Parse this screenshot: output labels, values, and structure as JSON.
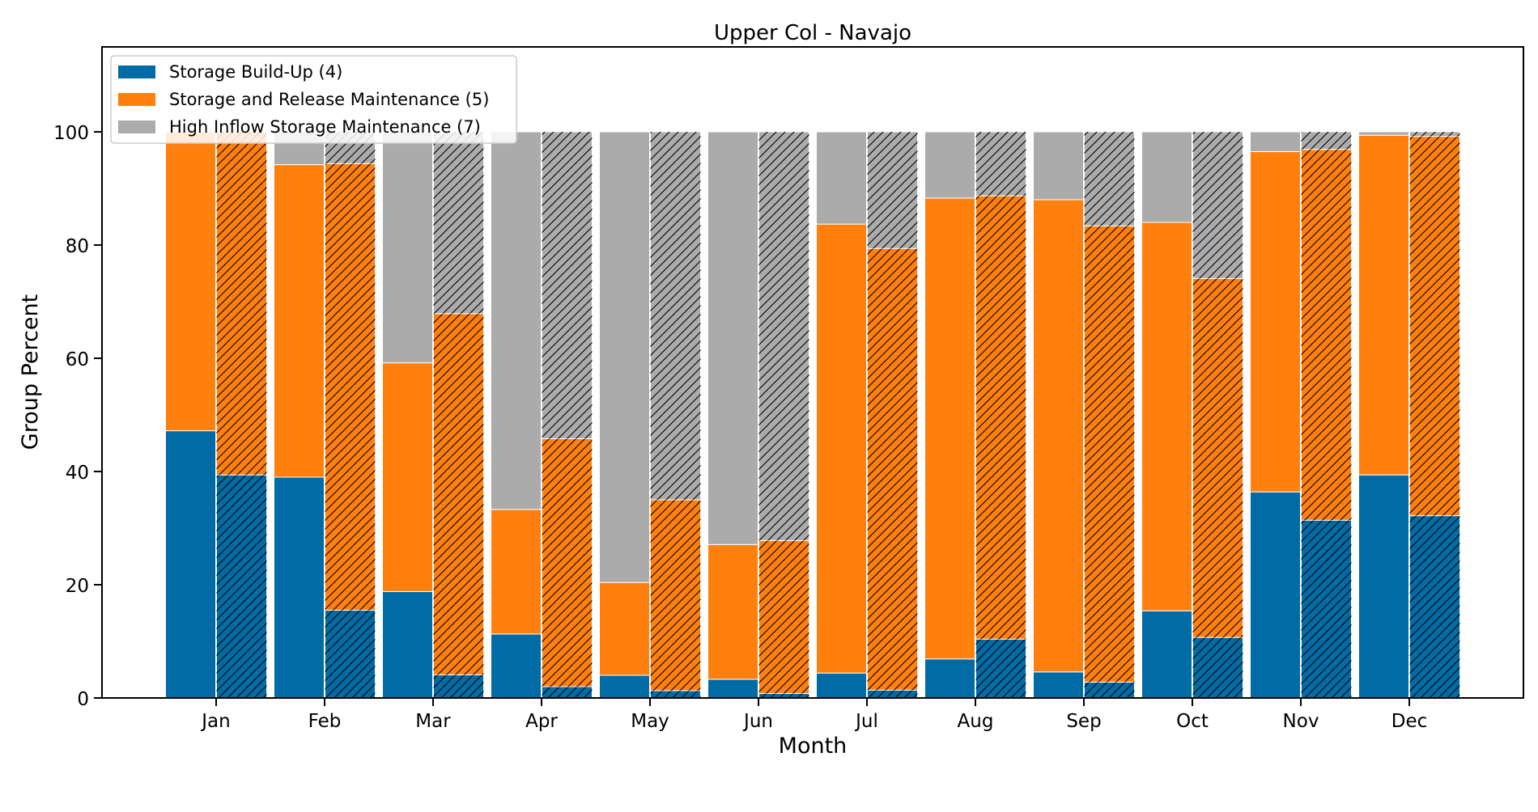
{
  "chart_data": {
    "type": "bar",
    "title": "Upper Col - Navajo",
    "xlabel": "Month",
    "ylabel": "Group Percent",
    "ylim": [
      0,
      115
    ],
    "yticks": [
      0,
      20,
      40,
      60,
      80,
      100
    ],
    "ytick_labels": [
      "0",
      "20",
      "40",
      "60",
      "80",
      "100"
    ],
    "categories": [
      "Jan",
      "Feb",
      "Mar",
      "Apr",
      "May",
      "Jun",
      "Jul",
      "Aug",
      "Sep",
      "Oct",
      "Nov",
      "Dec"
    ],
    "stacked": true,
    "legend_position": "top-left",
    "bar_groups": [
      {
        "name": "plain",
        "hatch": "none"
      },
      {
        "name": "hatched",
        "hatch": "diagonal"
      }
    ],
    "series": [
      {
        "name": "Storage Build-Up (4)",
        "color": "#006BA4",
        "plain": [
          47.2,
          39.0,
          18.8,
          11.3,
          4.0,
          3.3,
          4.4,
          6.9,
          4.6,
          15.4,
          36.4,
          39.4
        ],
        "hatched": [
          39.4,
          15.5,
          4.1,
          2.0,
          1.3,
          0.8,
          1.4,
          10.4,
          2.8,
          10.7,
          31.4,
          32.2
        ]
      },
      {
        "name": "Storage and Release Maintenance (5)",
        "color": "#FF800E",
        "plain": [
          52.8,
          55.2,
          40.4,
          22.0,
          16.4,
          23.8,
          79.3,
          81.4,
          83.4,
          68.6,
          60.1,
          60.0
        ],
        "hatched": [
          60.6,
          78.9,
          63.8,
          43.8,
          33.7,
          27.0,
          78.0,
          78.3,
          80.6,
          63.4,
          65.5,
          67.0
        ]
      },
      {
        "name": "High Inflow Storage Maintenance (7)",
        "color": "#ABABAB",
        "plain": [
          0.0,
          5.8,
          40.8,
          66.7,
          79.6,
          72.9,
          16.3,
          11.7,
          12.0,
          16.0,
          3.5,
          0.6
        ],
        "hatched": [
          0.0,
          5.6,
          32.1,
          54.2,
          65.0,
          72.2,
          20.6,
          11.3,
          16.6,
          25.9,
          3.1,
          0.8
        ]
      }
    ]
  }
}
